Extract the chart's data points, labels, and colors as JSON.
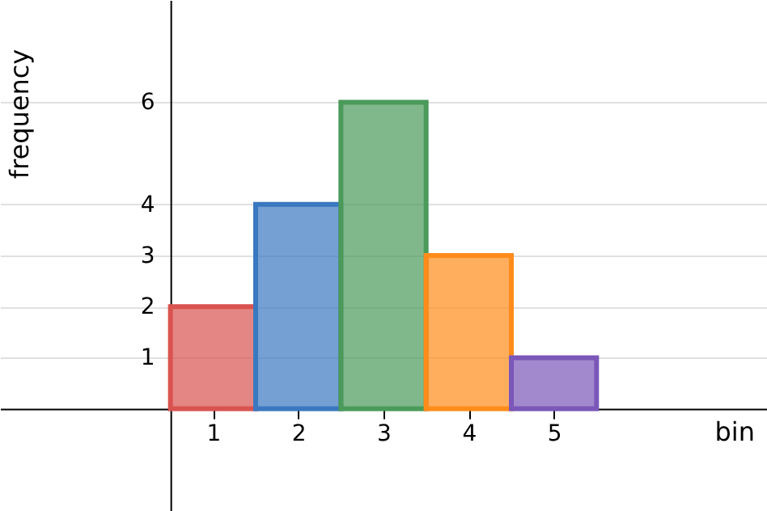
{
  "chart_data": {
    "type": "histogram",
    "xlabel": "bin",
    "ylabel": "frequency",
    "bins": [
      0.5,
      1.5,
      2.5,
      3.5,
      4.5,
      5.5
    ],
    "values": [
      2,
      4,
      6,
      3,
      1
    ],
    "colors": [
      "#d9534f",
      "#3a78c0",
      "#4a9a5a",
      "#ff8c1a",
      "#7a57b8"
    ],
    "xlim": [
      -1.5,
      7.5
    ],
    "ylim": [
      -2,
      8
    ],
    "xticks": [
      1,
      2,
      3,
      4,
      5
    ],
    "yticks": [
      1,
      2,
      3,
      4,
      6
    ],
    "grid": "y"
  }
}
